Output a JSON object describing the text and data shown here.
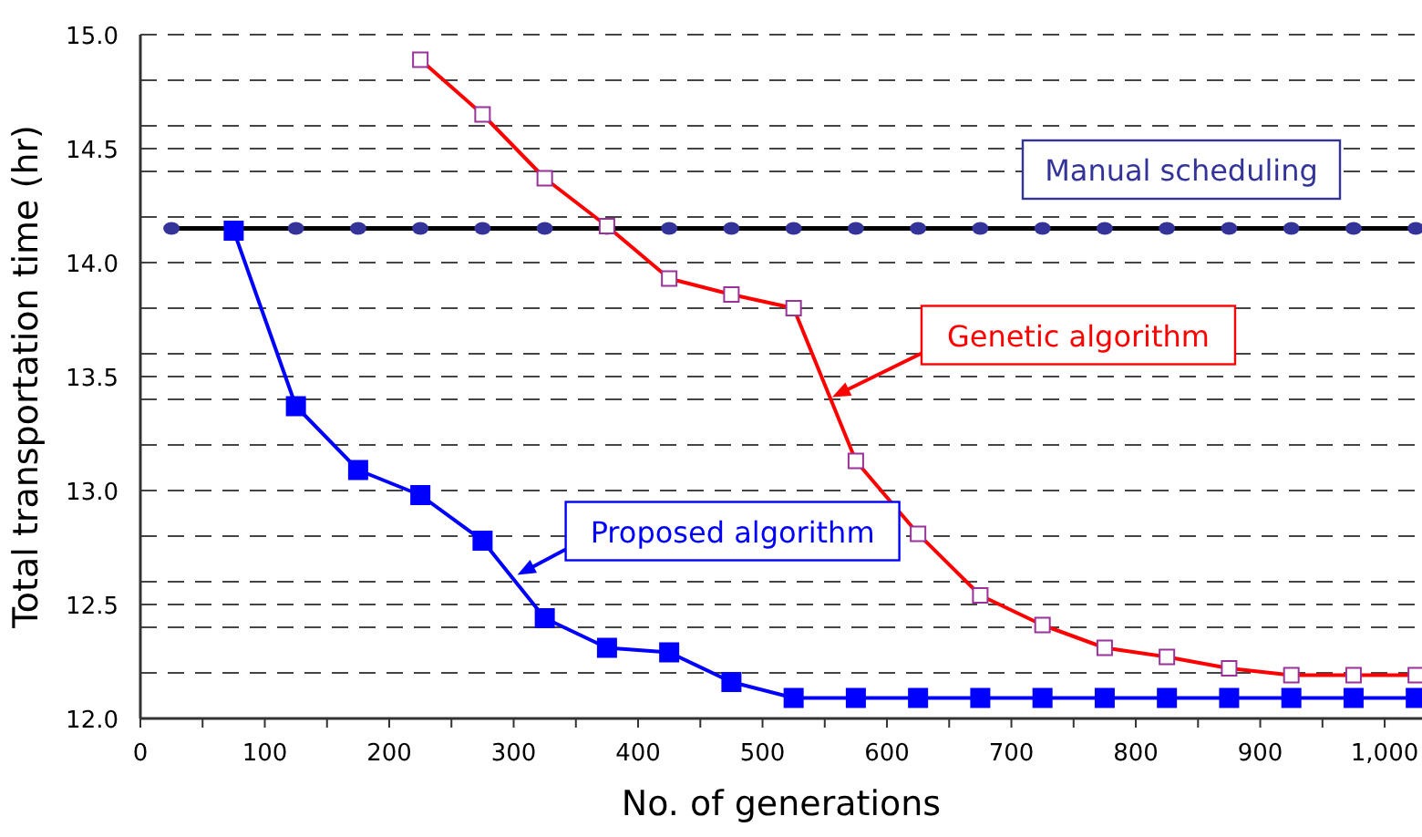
{
  "chart_data": {
    "type": "line",
    "xlabel": "No. of generations",
    "ylabel": "Total transportation time (hr)",
    "xlim": [
      0,
      1030
    ],
    "ylim": [
      12,
      15
    ],
    "xticks": [
      0,
      {
        "value": 50,
        "label": null
      },
      100,
      {
        "value": 150,
        "label": null
      },
      200,
      {
        "value": 250,
        "label": null
      },
      300,
      {
        "value": 350,
        "label": null
      },
      400,
      {
        "value": 450,
        "label": null
      },
      500,
      {
        "value": 550,
        "label": null
      },
      600,
      {
        "value": 650,
        "label": null
      },
      700,
      {
        "value": 750,
        "label": null
      },
      800,
      {
        "value": 850,
        "label": null
      },
      900,
      {
        "value": 950,
        "label": null
      },
      {
        "value": 1000,
        "label": "1,000"
      }
    ],
    "yticks": [
      {
        "value": 12,
        "label": "12.0"
      },
      {
        "value": 12.2,
        "label": null
      },
      {
        "value": 12.4,
        "label": null
      },
      12.5,
      {
        "value": 12.6,
        "label": null
      },
      {
        "value": 12.8,
        "label": null
      },
      {
        "value": 13,
        "label": "13.0"
      },
      {
        "value": 13.2,
        "label": null
      },
      {
        "value": 13.4,
        "label": null
      },
      13.5,
      {
        "value": 13.6,
        "label": null
      },
      {
        "value": 13.8,
        "label": null
      },
      {
        "value": 14,
        "label": "14.0"
      },
      {
        "value": 14.2,
        "label": null
      },
      {
        "value": 14.4,
        "label": null
      },
      14.5,
      {
        "value": 14.6,
        "label": null
      },
      {
        "value": 14.8,
        "label": null
      },
      {
        "value": 15,
        "label": "15.0"
      }
    ],
    "grid": "y",
    "series": [
      {
        "color": "#000000",
        "marker": "circle",
        "x": [
          25,
          75,
          125,
          175,
          225,
          275,
          325,
          375,
          425,
          475,
          525,
          575,
          625,
          675,
          725,
          775,
          825,
          875,
          925,
          975,
          1025
        ],
        "values": [
          14.15,
          14.15,
          14.15,
          14.15,
          14.15,
          14.15,
          14.15,
          14.15,
          14.15,
          14.15,
          14.15,
          14.15,
          14.15,
          14.15,
          14.15,
          14.15,
          14.15,
          14.15,
          14.15,
          14.15,
          14.15
        ]
      },
      {
        "color": "#ff0000",
        "marker": "square",
        "x": [
          225,
          275,
          325,
          375,
          425,
          475,
          525,
          575,
          625,
          675,
          725,
          775,
          825,
          875,
          925,
          975,
          1025
        ],
        "values": [
          14.89,
          14.65,
          14.37,
          14.16,
          13.93,
          13.86,
          13.8,
          13.13,
          12.81,
          12.54,
          12.41,
          12.31,
          12.27,
          12.22,
          12.19,
          12.19,
          12.19
        ]
      },
      {
        "color": "#0000ff",
        "marker": "square",
        "x": [
          75,
          125,
          175,
          225,
          275,
          325,
          375,
          425,
          475,
          525,
          575,
          625,
          675,
          725,
          775,
          825,
          875,
          925,
          975,
          1025
        ],
        "values": [
          14.14,
          13.37,
          13.09,
          12.98,
          12.78,
          12.44,
          12.31,
          12.29,
          12.16,
          12.09,
          12.09,
          12.09,
          12.09,
          12.09,
          12.09,
          12.09,
          12.09,
          12.09,
          12.09,
          12.09
        ]
      }
    ],
    "annotations": [
      "Manual scheduling",
      {
        "text": "Genetic algorithm",
        "x": 556,
        "y": 13.41
      },
      {
        "text": "Proposed algorithm",
        "x": 303,
        "y": 12.63
      }
    ]
  }
}
